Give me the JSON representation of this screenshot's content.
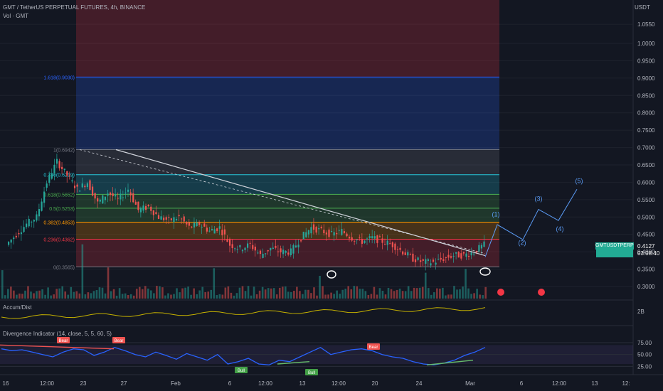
{
  "header": {
    "title": "GMT / TetherUS PERPETUAL FUTURES, 4h, BINANCE",
    "vol_label": "Vol · GMT",
    "currency": "USDT"
  },
  "price_axis": {
    "ticks": [
      "1.0550",
      "1.0000",
      "0.9500",
      "0.9000",
      "0.8500",
      "0.8000",
      "0.7500",
      "0.7000",
      "0.6500",
      "0.6000",
      "0.5500",
      "0.5000",
      "0.4500",
      "0.4000",
      "0.3500",
      "0.3000"
    ],
    "values": [
      1.055,
      1.0,
      0.95,
      0.9,
      0.85,
      0.8,
      0.75,
      0.7,
      0.65,
      0.6,
      0.55,
      0.5,
      0.45,
      0.4,
      0.35,
      0.3
    ]
  },
  "last_price": {
    "symbol": "GMTUSDTPERP",
    "price": "0.4127",
    "countdown": "03:08:40"
  },
  "fib_levels": [
    {
      "label": "1.618(0.9030)",
      "value": 0.903,
      "color": "#2962ff"
    },
    {
      "label": "1(0.6942)",
      "value": 0.6942,
      "color": "#787b86"
    },
    {
      "label": "0.786(0.6219)",
      "value": 0.6219,
      "color": "#26c6da"
    },
    {
      "label": "0.618(0.5652)",
      "value": 0.5652,
      "color": "#4caf50"
    },
    {
      "label": "0.5(0.5253)",
      "value": 0.5253,
      "color": "#4caf50"
    },
    {
      "label": "0.382(0.4853)",
      "value": 0.4853,
      "color": "#ff9800"
    },
    {
      "label": "0.236(0.4362)",
      "value": 0.4362,
      "color": "#f23645"
    },
    {
      "label": "0(0.3565)",
      "value": 0.3565,
      "color": "#787b86"
    }
  ],
  "wave_labels": [
    "(1)",
    "(2)",
    "(3)",
    "(4)",
    "(5)"
  ],
  "accum_panel": {
    "title": "Accum/Dist",
    "axis_label": "2B"
  },
  "osc_panel": {
    "title": "Divergence Indicator (14, close, 5, 5, 60, 5)",
    "ticks": [
      "75.00",
      "50.00",
      "25.00"
    ],
    "tick_values": [
      75,
      50,
      25
    ],
    "bear_label": "Bear",
    "bull_label": "Bull"
  },
  "time_axis": {
    "labels": [
      "16",
      "12:00",
      "23",
      "27",
      "Feb",
      "6",
      "12:00",
      "13",
      "12:00",
      "20",
      "24",
      "Mar",
      "6",
      "12:00",
      "13",
      "12:"
    ]
  },
  "chart_data": {
    "type": "candlestick",
    "title": "GMT / TetherUS PERPETUAL FUTURES, 4h, BINANCE",
    "ylabel": "USDT",
    "ylim": [
      0.27,
      1.13
    ],
    "close_path": [
      0.42,
      0.45,
      0.48,
      0.5,
      0.6,
      0.66,
      0.62,
      0.58,
      0.6,
      0.54,
      0.57,
      0.55,
      0.58,
      0.52,
      0.53,
      0.5,
      0.49,
      0.5,
      0.47,
      0.48,
      0.46,
      0.47,
      0.42,
      0.41,
      0.42,
      0.39,
      0.41,
      0.4,
      0.4,
      0.44,
      0.47,
      0.46,
      0.45,
      0.46,
      0.44,
      0.43,
      0.44,
      0.43,
      0.42,
      0.4,
      0.38,
      0.37,
      0.37,
      0.38,
      0.39,
      0.39,
      0.4,
      0.42
    ],
    "osc_values": [
      62,
      58,
      60,
      55,
      50,
      45,
      55,
      62,
      60,
      48,
      55,
      65,
      58,
      50,
      45,
      55,
      48,
      40,
      52,
      45,
      38,
      50,
      30,
      35,
      42,
      30,
      28,
      38,
      35,
      45,
      55,
      65,
      50,
      55,
      60,
      62,
      58,
      50,
      45,
      42,
      35,
      30,
      28,
      32,
      38,
      48,
      55,
      65
    ],
    "osc_ylim": [
      15,
      90
    ]
  }
}
